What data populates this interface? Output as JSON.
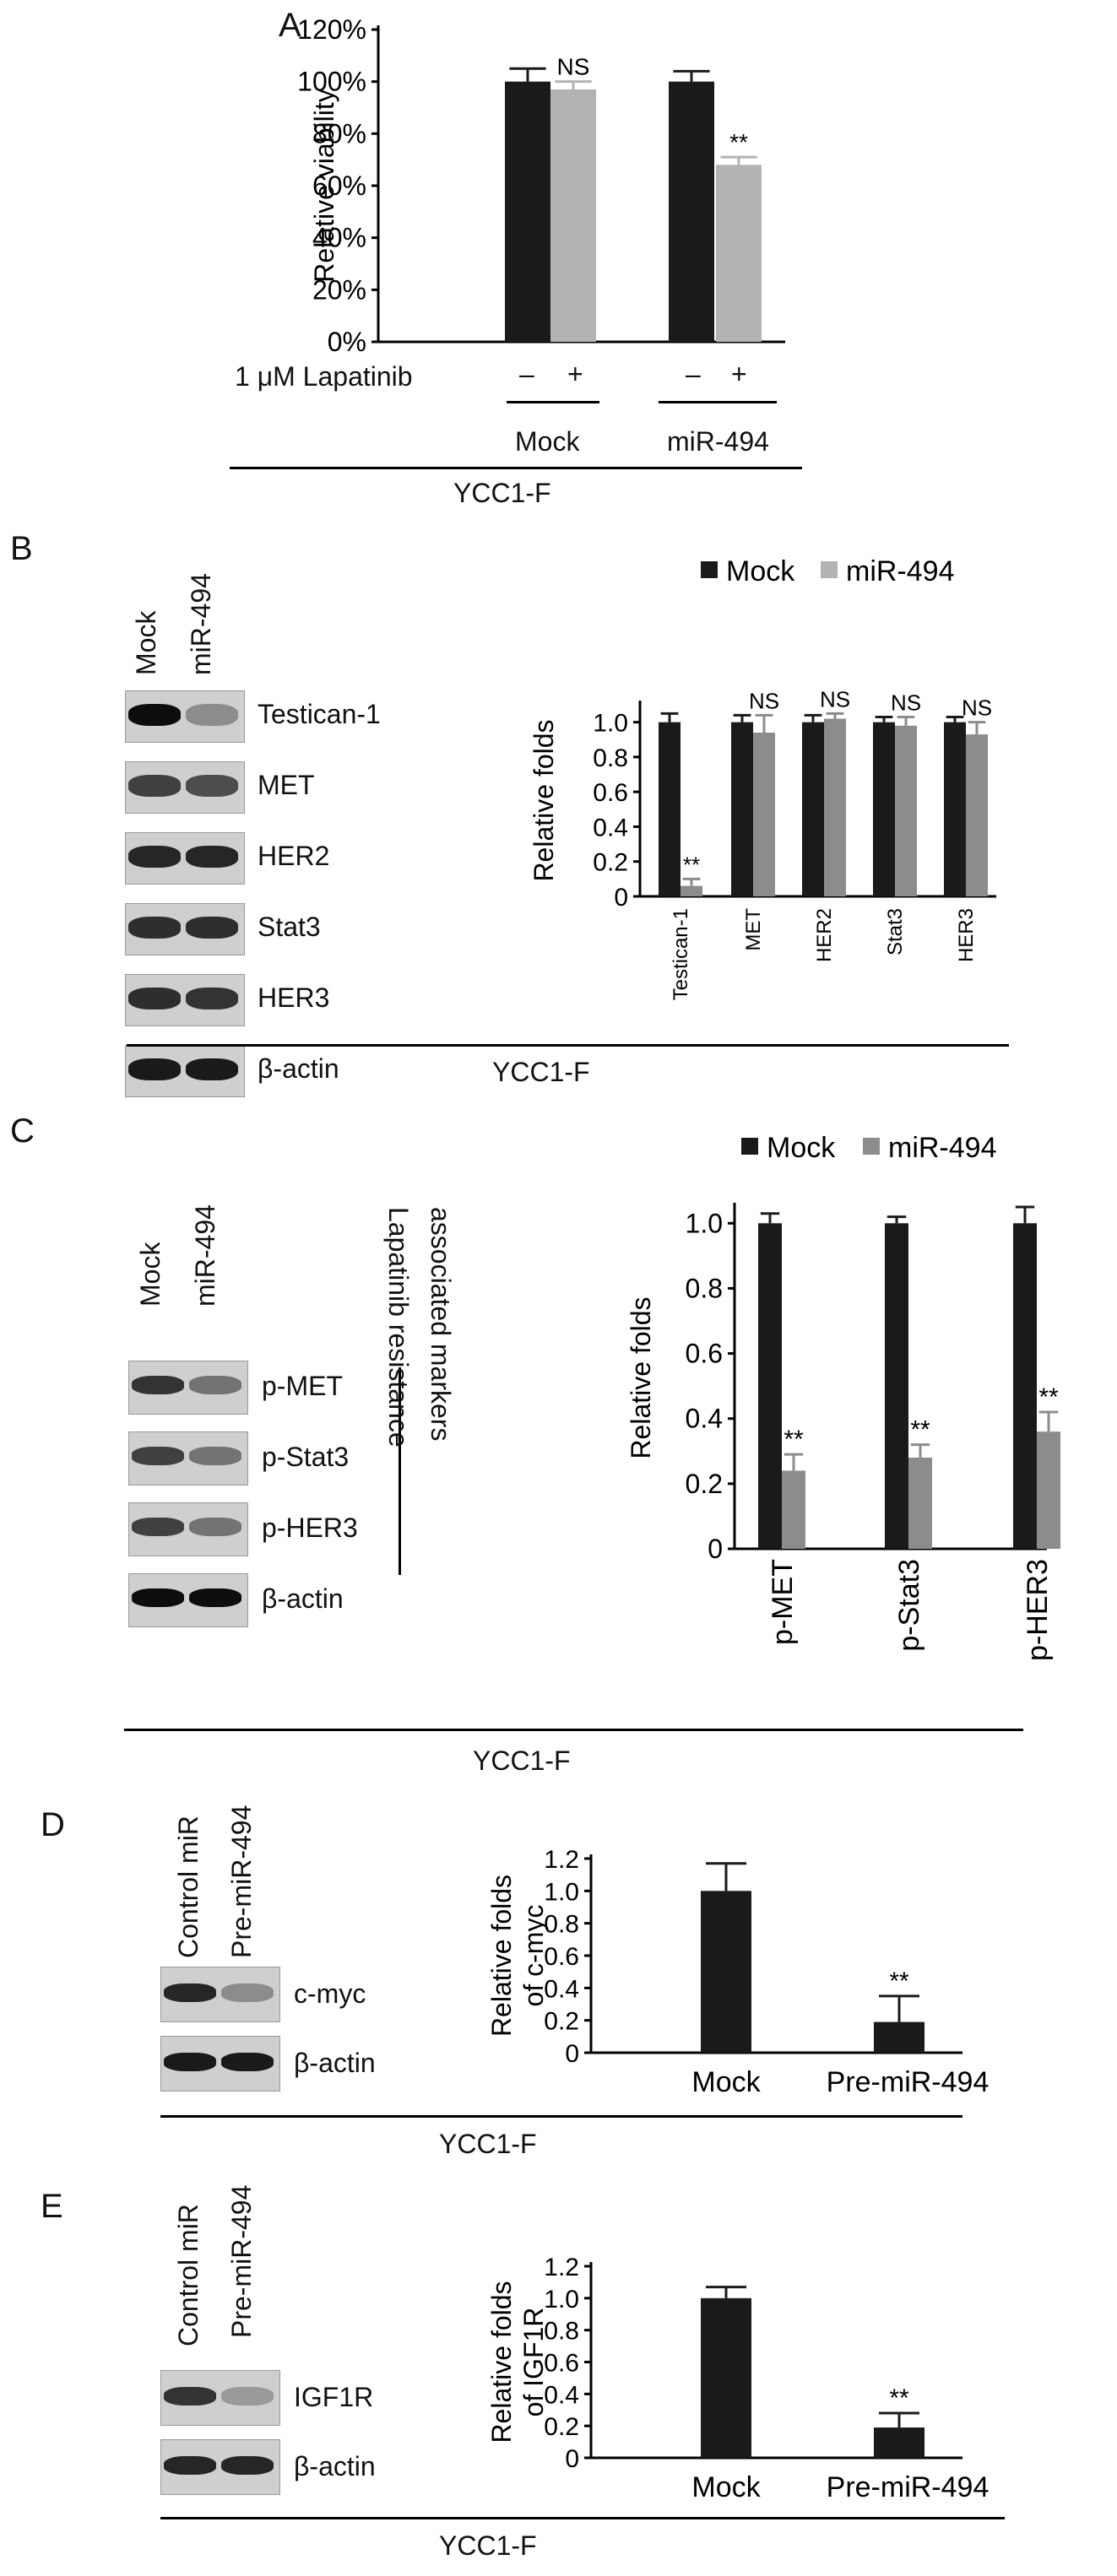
{
  "panels": {
    "A": {
      "letter": "A",
      "treatment_label": "1 μM Lapatinib",
      "treatment_signs": [
        "–",
        "+",
        "–",
        "+"
      ],
      "group_labels": [
        "Mock",
        "miR-494"
      ],
      "cell_line": "YCC1-F"
    },
    "B": {
      "letter": "B",
      "lane_labels": [
        "Mock",
        "miR-494"
      ],
      "blot_labels": [
        "Testican-1",
        "MET",
        "HER2",
        "Stat3",
        "HER3",
        "β-actin"
      ],
      "cell_line": "YCC1-F"
    },
    "C": {
      "letter": "C",
      "lane_labels": [
        "Mock",
        "miR-494"
      ],
      "blot_labels": [
        "p-MET",
        "p-Stat3",
        "p-HER3",
        "β-actin"
      ],
      "bracket_label": [
        "Lapatinib resistance",
        "associated markers"
      ],
      "cell_line": "YCC1-F"
    },
    "D": {
      "letter": "D",
      "lane_labels": [
        "Control miR",
        "Pre-miR-494"
      ],
      "blot_labels": [
        "c-myc",
        "β-actin"
      ],
      "cell_line": "YCC1-F"
    },
    "E": {
      "letter": "E",
      "lane_labels": [
        "Control miR",
        "Pre-miR-494"
      ],
      "blot_labels": [
        "IGF1R",
        "β-actin"
      ],
      "cell_line": "YCC1-F"
    }
  },
  "colors": {
    "black": "#1a1a1a",
    "gray": "#b3b3b3",
    "darkgray": "#8c8c8c"
  },
  "chart_data": [
    {
      "id": "A",
      "type": "bar",
      "ylabel": "Relative viability",
      "ylim": [
        0,
        120
      ],
      "yticks": [
        "0%",
        "20%",
        "40%",
        "60%",
        "80%",
        "100%",
        "120%"
      ],
      "categories": [
        "Mock –",
        "Mock +",
        "miR-494 –",
        "miR-494 +"
      ],
      "values": [
        100,
        97,
        100,
        68
      ],
      "errors": [
        5,
        3,
        4,
        3
      ],
      "bar_colors": [
        "#1a1a1a",
        "#b3b3b3",
        "#1a1a1a",
        "#b3b3b3"
      ],
      "annotations": [
        "",
        "NS",
        "",
        "**"
      ]
    },
    {
      "id": "B",
      "type": "bar",
      "ylabel": "Relative folds",
      "ylim": [
        0,
        1.1
      ],
      "yticks": [
        "0",
        "0.2",
        "0.4",
        "0.6",
        "0.8",
        "1.0"
      ],
      "categories": [
        "Testican-1",
        "MET",
        "HER2",
        "Stat3",
        "HER3"
      ],
      "series": [
        {
          "name": "Mock",
          "values": [
            1.0,
            1.0,
            1.0,
            1.0,
            1.0
          ],
          "errors": [
            0.05,
            0.04,
            0.04,
            0.03,
            0.03
          ]
        },
        {
          "name": "miR-494",
          "values": [
            0.06,
            0.94,
            1.02,
            0.98,
            0.93
          ],
          "errors": [
            0.04,
            0.1,
            0.03,
            0.05,
            0.07
          ]
        }
      ],
      "annotations": [
        "**",
        "NS",
        "NS",
        "NS",
        "NS"
      ],
      "legend": "top"
    },
    {
      "id": "C",
      "type": "bar",
      "ylabel": "Relative folds",
      "ylim": [
        0,
        1.05
      ],
      "yticks": [
        "0",
        "0.2",
        "0.4",
        "0.6",
        "0.8",
        "1.0"
      ],
      "categories": [
        "p-MET",
        "p-Stat3",
        "p-HER3"
      ],
      "series": [
        {
          "name": "Mock",
          "values": [
            1.0,
            1.0,
            1.0
          ],
          "errors": [
            0.03,
            0.02,
            0.05
          ]
        },
        {
          "name": "miR-494",
          "values": [
            0.24,
            0.28,
            0.36
          ],
          "errors": [
            0.05,
            0.04,
            0.06
          ]
        }
      ],
      "annotations": [
        "**",
        "**",
        "**"
      ],
      "legend": "top"
    },
    {
      "id": "D",
      "type": "bar",
      "ylabel": "Relative folds of c-myc",
      "ylim": [
        0,
        1.2
      ],
      "yticks": [
        "0",
        "0.2",
        "0.4",
        "0.6",
        "0.8",
        "1.0",
        "1.2"
      ],
      "categories": [
        "Mock",
        "Pre-miR-494"
      ],
      "values": [
        1.0,
        0.19
      ],
      "errors": [
        0.17,
        0.16
      ],
      "annotations": [
        "",
        "**"
      ]
    },
    {
      "id": "E",
      "type": "bar",
      "ylabel": "Relative folds of IGF1R",
      "ylim": [
        0,
        1.2
      ],
      "yticks": [
        "0",
        "0.2",
        "0.4",
        "0.6",
        "0.8",
        "1.0",
        "1.2"
      ],
      "categories": [
        "Mock",
        "Pre-miR-494"
      ],
      "values": [
        1.0,
        0.19
      ],
      "errors": [
        0.07,
        0.09
      ],
      "annotations": [
        "",
        "**"
      ]
    }
  ]
}
